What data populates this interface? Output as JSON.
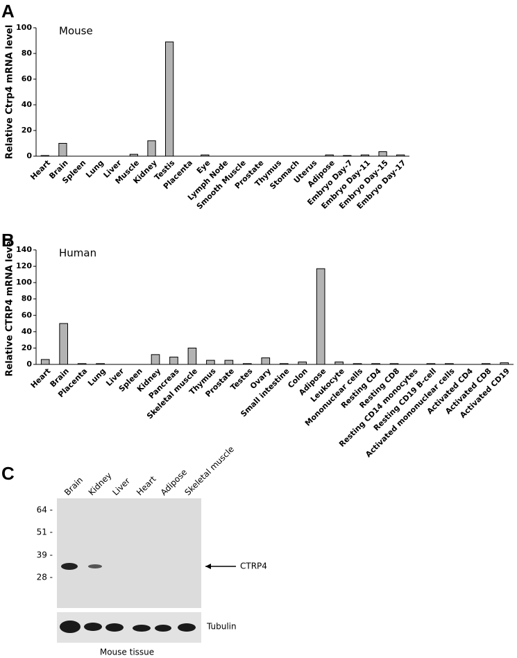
{
  "panel_labels": [
    "A",
    "B",
    "C"
  ],
  "chart_data": [
    {
      "type": "bar",
      "annotation": "Mouse",
      "ylabel": "Relative Ctrp4 mRNA level",
      "categories": [
        "Heart",
        "Brain",
        "Spleen",
        "Lung",
        "Liver",
        "Muscle",
        "Kidney",
        "Testis",
        "Placenta",
        "Eye",
        "Lymph Node",
        "Smooth Muscle",
        "Prostate",
        "Thymus",
        "Stomach",
        "Uterus",
        "Adipose",
        "Embryo Day-7",
        "Embryo Day-11",
        "Embryo Day-15",
        "Embryo Day-17"
      ],
      "values": [
        0.5,
        10,
        0,
        0,
        0,
        1.5,
        12,
        89,
        0,
        1,
        0,
        0,
        0,
        0,
        0,
        0,
        1,
        0.5,
        1,
        3.5,
        1
      ],
      "color": "#b3b3b3",
      "ylim": [
        0,
        100
      ],
      "yticks": [
        0,
        20,
        40,
        60,
        80,
        100
      ]
    },
    {
      "type": "bar",
      "annotation": "Human",
      "ylabel": "Relative CTRP4 mRNA level",
      "categories": [
        "Heart",
        "Brain",
        "Placenta",
        "Lung",
        "Liver",
        "Spleen",
        "Kidney",
        "Pancreas",
        "Skeletal muscle",
        "Thymus",
        "Prostate",
        "Testes",
        "Ovary",
        "Small intestine",
        "Colon",
        "Adipose",
        "Leukocyte",
        "Mononuclear cells",
        "Resting CD4",
        "Resting CD8",
        "Resting CD14 monocytes",
        "Resting CD19 B-cell",
        "Activated mononuclear cells",
        "Activated CD4",
        "Activated CD8",
        "Activated CD19"
      ],
      "values": [
        6,
        50,
        1,
        1,
        0,
        0,
        12,
        9,
        20,
        5,
        5,
        1,
        8,
        1,
        3,
        117,
        3,
        1,
        1,
        1,
        0,
        1,
        1,
        0,
        1,
        2
      ],
      "color": "#b3b3b3",
      "ylim": [
        0,
        140
      ],
      "yticks": [
        0,
        20,
        40,
        60,
        80,
        100,
        120,
        140
      ]
    }
  ],
  "blot": {
    "lanes": [
      "Brain",
      "Kidney",
      "Liver",
      "Heart",
      "Adipose",
      "Skeletal muscle"
    ],
    "markers": [
      "64 -",
      "51 -",
      "39 -",
      "28 -"
    ],
    "band_label": "CTRP4",
    "loading_label": "Tubulin",
    "caption": "Mouse tissue"
  }
}
